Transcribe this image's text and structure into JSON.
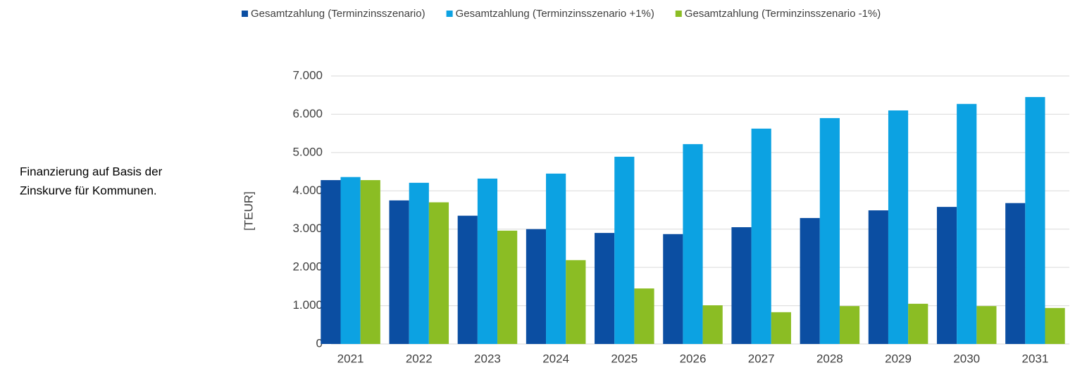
{
  "chart_data": {
    "type": "bar",
    "annotations": [
      "Finanzierung  auf Basis der",
      "Zinskurve  für Kommunen."
    ],
    "ylabel": "[TEUR]",
    "categories": [
      "2021",
      "2022",
      "2023",
      "2024",
      "2025",
      "2026",
      "2027",
      "2028",
      "2029",
      "2030",
      "2031"
    ],
    "series": [
      {
        "name": "Gesamtzahlung (Terminzinsszenario)",
        "color": "#0b4ea2",
        "values": [
          4280,
          3750,
          3350,
          3000,
          2900,
          2870,
          3050,
          3290,
          3490,
          3580,
          3680
        ]
      },
      {
        "name": "Gesamtzahlung (Terminzinsszenario +1%)",
        "color": "#0ca2e2",
        "values": [
          4360,
          4210,
          4320,
          4450,
          4890,
          5220,
          5625,
          5900,
          6100,
          6270,
          6450
        ]
      },
      {
        "name": "Gesamtzahlung (Terminzinsszenario -1%)",
        "color": "#8bbd24",
        "values": [
          4280,
          3700,
          2960,
          2190,
          1450,
          1010,
          830,
          990,
          1050,
          990,
          940
        ]
      }
    ],
    "ylim": [
      0,
      7000
    ],
    "yticks": [
      0,
      {
        "value": 1000,
        "label": "1.000"
      },
      {
        "value": 2000,
        "label": "2.000"
      },
      {
        "value": 3000,
        "label": "3.000"
      },
      {
        "value": 4000,
        "label": "4.000"
      },
      {
        "value": 5000,
        "label": "5.000"
      },
      {
        "value": 6000,
        "label": "6.000"
      },
      {
        "value": 7000,
        "label": "7.000"
      }
    ],
    "grid": true,
    "legend": "top"
  }
}
